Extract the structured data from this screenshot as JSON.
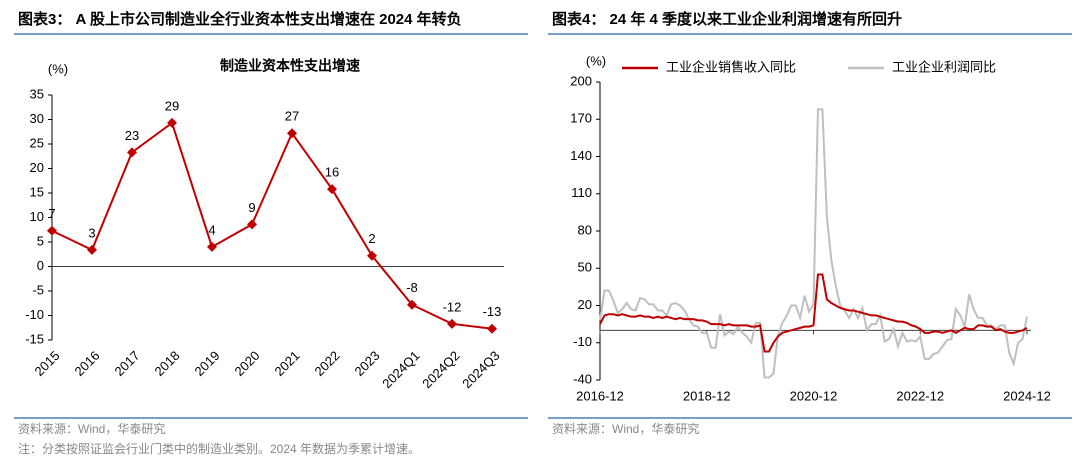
{
  "chart_data": [
    {
      "type": "line",
      "caption": "图表3： A 股上市公司制造业全行业资本性支出增速在 2024 年转负",
      "title": "制造业资本性支出增速",
      "y_label": "(%)",
      "categories": [
        "2015",
        "2016",
        "2017",
        "2018",
        "2019",
        "2020",
        "2021",
        "2022",
        "2023",
        "2024Q1",
        "2024Q2",
        "2024Q3"
      ],
      "values": [
        7.3,
        3.4,
        23.3,
        29.3,
        4.0,
        8.6,
        27.2,
        15.8,
        2.2,
        -7.8,
        -11.7,
        -12.7
      ],
      "value_labels": [
        "7",
        "3",
        "23",
        "29",
        "4",
        "9",
        "27",
        "16",
        "2",
        "-8",
        "-12",
        "-13"
      ],
      "color": "#c00000",
      "ylim": [
        -15,
        35
      ],
      "yticks": [
        -15,
        -10,
        -5,
        0,
        5,
        10,
        15,
        20,
        25,
        30,
        35
      ],
      "source": "资料来源：Wind，华泰研究",
      "note": "注：分类按照证监会行业门类中的制造业类别。2024 年数据为季累计增速。"
    },
    {
      "type": "line",
      "caption": "图表4： 24 年 4 季度以来工业企业利润增速有所回升",
      "y_label": "(%)",
      "x": [
        "2016-12",
        "2017-01",
        "2017-02",
        "2017-03",
        "2017-04",
        "2017-05",
        "2017-06",
        "2017-07",
        "2017-08",
        "2017-09",
        "2017-10",
        "2017-11",
        "2017-12",
        "2018-01",
        "2018-02",
        "2018-03",
        "2018-04",
        "2018-05",
        "2018-06",
        "2018-07",
        "2018-08",
        "2018-09",
        "2018-10",
        "2018-11",
        "2018-12",
        "2019-01",
        "2019-02",
        "2019-03",
        "2019-04",
        "2019-05",
        "2019-06",
        "2019-07",
        "2019-08",
        "2019-09",
        "2019-10",
        "2019-11",
        "2019-12",
        "2020-01",
        "2020-02",
        "2020-03",
        "2020-04",
        "2020-05",
        "2020-06",
        "2020-07",
        "2020-08",
        "2020-09",
        "2020-10",
        "2020-11",
        "2020-12",
        "2021-01",
        "2021-02",
        "2021-03",
        "2021-04",
        "2021-05",
        "2021-06",
        "2021-07",
        "2021-08",
        "2021-09",
        "2021-10",
        "2021-11",
        "2021-12",
        "2022-01",
        "2022-02",
        "2022-03",
        "2022-04",
        "2022-05",
        "2022-06",
        "2022-07",
        "2022-08",
        "2022-09",
        "2022-10",
        "2022-11",
        "2022-12",
        "2023-01",
        "2023-02",
        "2023-03",
        "2023-04",
        "2023-05",
        "2023-06",
        "2023-07",
        "2023-08",
        "2023-09",
        "2023-10",
        "2023-11",
        "2023-12",
        "2024-01",
        "2024-02",
        "2024-03",
        "2024-04",
        "2024-05",
        "2024-06",
        "2024-07",
        "2024-08",
        "2024-09",
        "2024-10",
        "2024-11",
        "2024-12"
      ],
      "series": [
        {
          "name": "工业企业销售收入同比",
          "color": "#c00000",
          "values": [
            5,
            12,
            13,
            13,
            12,
            13,
            12,
            11,
            11,
            12,
            11,
            11,
            10,
            11,
            10,
            11,
            10,
            9,
            10,
            9,
            9,
            9,
            8,
            8,
            7,
            5,
            5,
            5,
            4,
            5,
            4,
            4,
            4,
            4,
            3,
            3,
            4,
            -17,
            -17,
            -10,
            -5,
            -2,
            -1,
            0,
            1,
            2,
            3,
            3,
            4,
            45,
            45,
            25,
            22,
            20,
            18,
            17,
            16,
            16,
            15,
            14,
            13,
            12,
            12,
            11,
            10,
            9,
            8,
            7,
            7,
            6,
            4,
            3,
            1,
            -2,
            -2,
            -1,
            -1,
            -2,
            -1,
            0,
            -2,
            0,
            2,
            1,
            1,
            4,
            4,
            3,
            3,
            0,
            1,
            -1,
            -2,
            -2,
            -1,
            0,
            2
          ]
        },
        {
          "name": "工业企业利润同比",
          "color": "#bfbfbf",
          "values": [
            8,
            32,
            32,
            24,
            14,
            17,
            22,
            17,
            16,
            26,
            25,
            21,
            21,
            16,
            16,
            12,
            21,
            22,
            20,
            16,
            9,
            4,
            3,
            -2,
            -2,
            -14,
            -14,
            13,
            -4,
            -1,
            -3,
            3,
            -2,
            -5,
            -10,
            6,
            6,
            -38,
            -38,
            -35,
            -4,
            6,
            12,
            20,
            20,
            10,
            28,
            15,
            21,
            178,
            178,
            92,
            57,
            36,
            20,
            16,
            10,
            17,
            10,
            18,
            0,
            5,
            5,
            12,
            -9,
            -7,
            1,
            -13,
            -2,
            -9,
            -8,
            -9,
            -5,
            -23,
            -23,
            -19,
            -18,
            -13,
            -8,
            -7,
            17,
            12,
            3,
            29,
            17,
            10,
            10,
            4,
            4,
            1,
            4,
            4,
            -18,
            -27,
            -10,
            -7,
            11
          ]
        }
      ],
      "xticks": [
        "2016-12",
        "2018-12",
        "2020-12",
        "2022-12",
        "2024-12"
      ],
      "ylim": [
        -40,
        200
      ],
      "yticks": [
        -40,
        -10,
        20,
        50,
        80,
        110,
        140,
        170,
        200
      ],
      "source": "资料来源：Wind，华泰研究"
    }
  ]
}
